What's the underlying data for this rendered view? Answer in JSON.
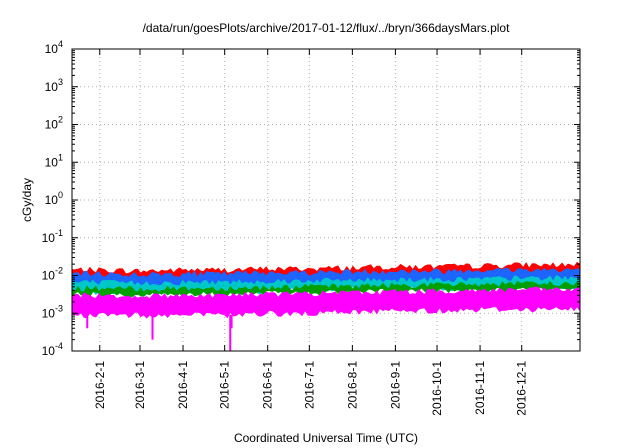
{
  "chart_data": {
    "type": "area",
    "title": "/data/run/goesPlots/archive/2017-01-12/flux/../bryn/366daysMars.plot",
    "xlabel": "Coordinated Universal Time (UTC)",
    "ylabel": "cGy/day",
    "yscale": "log",
    "ylim": [
      0.0001,
      10000
    ],
    "xlim": [
      "2016-01-12",
      "2017-01-12"
    ],
    "grid": true,
    "y_ticks": [
      {
        "value": 0.0001,
        "base": "10",
        "exp": "-4"
      },
      {
        "value": 0.001,
        "base": "10",
        "exp": "-3"
      },
      {
        "value": 0.01,
        "base": "10",
        "exp": "-2"
      },
      {
        "value": 0.1,
        "base": "10",
        "exp": "-1"
      },
      {
        "value": 1,
        "base": "10",
        "exp": "0"
      },
      {
        "value": 10,
        "base": "10",
        "exp": "1"
      },
      {
        "value": 100,
        "base": "10",
        "exp": "2"
      },
      {
        "value": 1000,
        "base": "10",
        "exp": "3"
      },
      {
        "value": 10000,
        "base": "10",
        "exp": "4"
      }
    ],
    "x_ticks": [
      "2016-2-1",
      "2016-3-1",
      "2016-4-1",
      "2016-5-1",
      "2016-6-1",
      "2016-7-1",
      "2016-8-1",
      "2016-9-1",
      "2016-10-1",
      "2016-11-1",
      "2016-12-1"
    ],
    "x_tick_dates": [
      "2016-02-01",
      "2016-03-01",
      "2016-04-01",
      "2016-05-01",
      "2016-06-01",
      "2016-07-01",
      "2016-08-01",
      "2016-09-01",
      "2016-10-01",
      "2016-11-01",
      "2016-12-01"
    ],
    "series": [
      {
        "color": "#ff0000",
        "x": [
          "2016-01-12",
          "2016-02-01",
          "2016-03-01",
          "2016-04-01",
          "2016-05-01",
          "2016-06-01",
          "2016-07-01",
          "2016-08-01",
          "2016-09-01",
          "2016-10-01",
          "2016-11-01",
          "2016-12-01",
          "2017-01-12"
        ],
        "low": [
          0.006,
          0.006,
          0.006,
          0.006,
          0.0062,
          0.0065,
          0.0068,
          0.007,
          0.0075,
          0.0075,
          0.0078,
          0.008,
          0.008
        ],
        "high": [
          0.014,
          0.014,
          0.013,
          0.014,
          0.014,
          0.015,
          0.015,
          0.016,
          0.017,
          0.017,
          0.018,
          0.019,
          0.019
        ]
      },
      {
        "color": "#1e64ff",
        "x": [
          "2016-01-12",
          "2016-02-01",
          "2016-03-01",
          "2016-04-01",
          "2016-05-01",
          "2016-06-01",
          "2016-07-01",
          "2016-08-01",
          "2016-09-01",
          "2016-10-01",
          "2016-11-01",
          "2016-12-01",
          "2017-01-12"
        ],
        "low": [
          0.0045,
          0.0045,
          0.0045,
          0.0045,
          0.0046,
          0.0048,
          0.005,
          0.0052,
          0.0055,
          0.0056,
          0.0058,
          0.006,
          0.006
        ],
        "high": [
          0.011,
          0.011,
          0.0105,
          0.011,
          0.011,
          0.012,
          0.012,
          0.0125,
          0.013,
          0.013,
          0.014,
          0.014,
          0.0145
        ]
      },
      {
        "color": "#00c8c8",
        "x": [
          "2016-01-12",
          "2016-02-01",
          "2016-03-01",
          "2016-04-01",
          "2016-05-01",
          "2016-06-01",
          "2016-07-01",
          "2016-08-01",
          "2016-09-01",
          "2016-10-01",
          "2016-11-01",
          "2016-12-01",
          "2017-01-12"
        ],
        "low": [
          0.0038,
          0.0038,
          0.0037,
          0.0038,
          0.0039,
          0.004,
          0.0042,
          0.0044,
          0.0046,
          0.0047,
          0.0048,
          0.005,
          0.005
        ],
        "high": [
          0.0065,
          0.0065,
          0.0062,
          0.0065,
          0.0066,
          0.007,
          0.0072,
          0.0074,
          0.0078,
          0.0078,
          0.008,
          0.0085,
          0.0085
        ]
      },
      {
        "color": "#00a000",
        "x": [
          "2016-01-12",
          "2016-02-01",
          "2016-03-01",
          "2016-04-01",
          "2016-05-01",
          "2016-06-01",
          "2016-07-01",
          "2016-08-01",
          "2016-09-01",
          "2016-10-01",
          "2016-11-01",
          "2016-12-01",
          "2017-01-12"
        ],
        "low": [
          0.0032,
          0.0032,
          0.0031,
          0.0032,
          0.0033,
          0.0034,
          0.0035,
          0.0037,
          0.0039,
          0.004,
          0.0041,
          0.0042,
          0.0042
        ],
        "high": [
          0.0045,
          0.0045,
          0.0043,
          0.0045,
          0.0046,
          0.0048,
          0.005,
          0.0052,
          0.0055,
          0.0056,
          0.0058,
          0.006,
          0.006
        ]
      },
      {
        "color": "#ff00ff",
        "x": [
          "2016-01-12",
          "2016-02-01",
          "2016-03-01",
          "2016-04-01",
          "2016-05-01",
          "2016-06-01",
          "2016-07-01",
          "2016-08-01",
          "2016-09-01",
          "2016-10-01",
          "2016-11-01",
          "2016-12-01",
          "2017-01-12"
        ],
        "low": [
          0.0009,
          0.0009,
          0.0009,
          0.0009,
          0.0009,
          0.001,
          0.001,
          0.0011,
          0.0012,
          0.0012,
          0.0013,
          0.0013,
          0.0013
        ],
        "high": [
          0.003,
          0.003,
          0.0028,
          0.003,
          0.003,
          0.0032,
          0.0033,
          0.0035,
          0.0037,
          0.0038,
          0.004,
          0.0042,
          0.0042
        ]
      }
    ],
    "spikes": [
      {
        "date": "2016-01-23",
        "value": 0.0004
      },
      {
        "date": "2016-03-10",
        "value": 0.0002
      },
      {
        "date": "2016-05-05",
        "value": 0.0001
      },
      {
        "date": "2016-05-06",
        "value": 0.0004
      }
    ]
  }
}
